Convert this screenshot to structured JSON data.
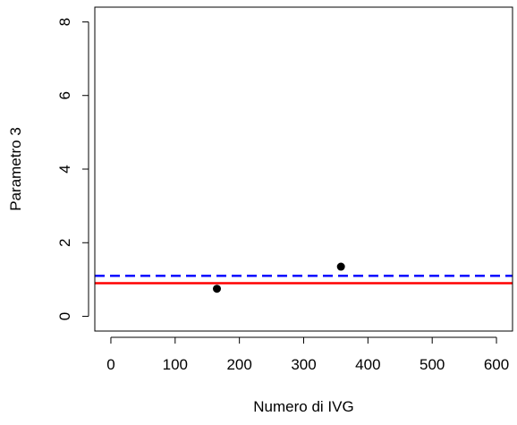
{
  "chart_data": {
    "type": "scatter",
    "xlabel": "Numero di IVG",
    "ylabel": "Parametro 3",
    "xlim": [
      -25,
      625
    ],
    "ylim": [
      -0.4,
      8.4
    ],
    "x_ticks": [
      "0",
      "100",
      "200",
      "300",
      "400",
      "500",
      "600"
    ],
    "y_ticks": [
      "0",
      "2",
      "4",
      "6",
      "8"
    ],
    "points": [
      {
        "x": 165,
        "y": 0.75
      },
      {
        "x": 358,
        "y": 1.35
      }
    ],
    "hlines": [
      {
        "y": 0.9,
        "color": "#ff0000",
        "style": "solid"
      },
      {
        "y": 1.1,
        "color": "#0000ff",
        "style": "dashed"
      }
    ],
    "point_color": "#000000",
    "grid": false,
    "legend": null
  }
}
